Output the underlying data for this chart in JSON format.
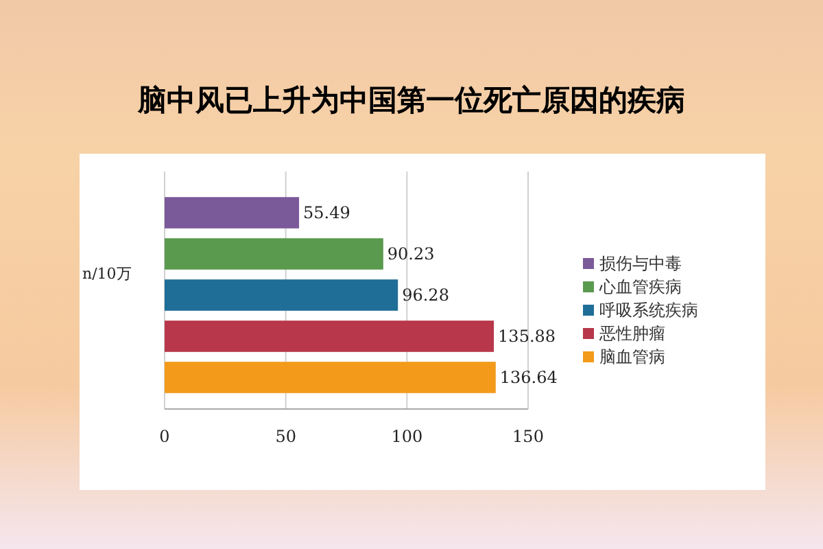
{
  "chart_data": {
    "type": "bar",
    "orientation": "horizontal",
    "title": "脑中风已上升为中国第一位死亡原因的疾病",
    "ylabel": "n/10万",
    "categories": [
      null
    ],
    "series": [
      {
        "name": "损伤与中毒",
        "color": "#7b5a9a",
        "values": [
          55.49
        ]
      },
      {
        "name": "心血管疾病",
        "color": "#5a9a4e",
        "values": [
          90.23
        ]
      },
      {
        "name": "呼吸系统疾病",
        "color": "#1f6e97",
        "values": [
          96.28
        ]
      },
      {
        "name": "恶性肿瘤",
        "color": "#b8374a",
        "values": [
          135.88
        ]
      },
      {
        "name": "脑血管病",
        "color": "#f39a1a",
        "values": [
          136.64
        ]
      }
    ],
    "xlim": [
      0,
      150
    ],
    "xticks": [
      0,
      50,
      100,
      150
    ],
    "grid": "x",
    "legend": "right",
    "data_labels": true
  }
}
